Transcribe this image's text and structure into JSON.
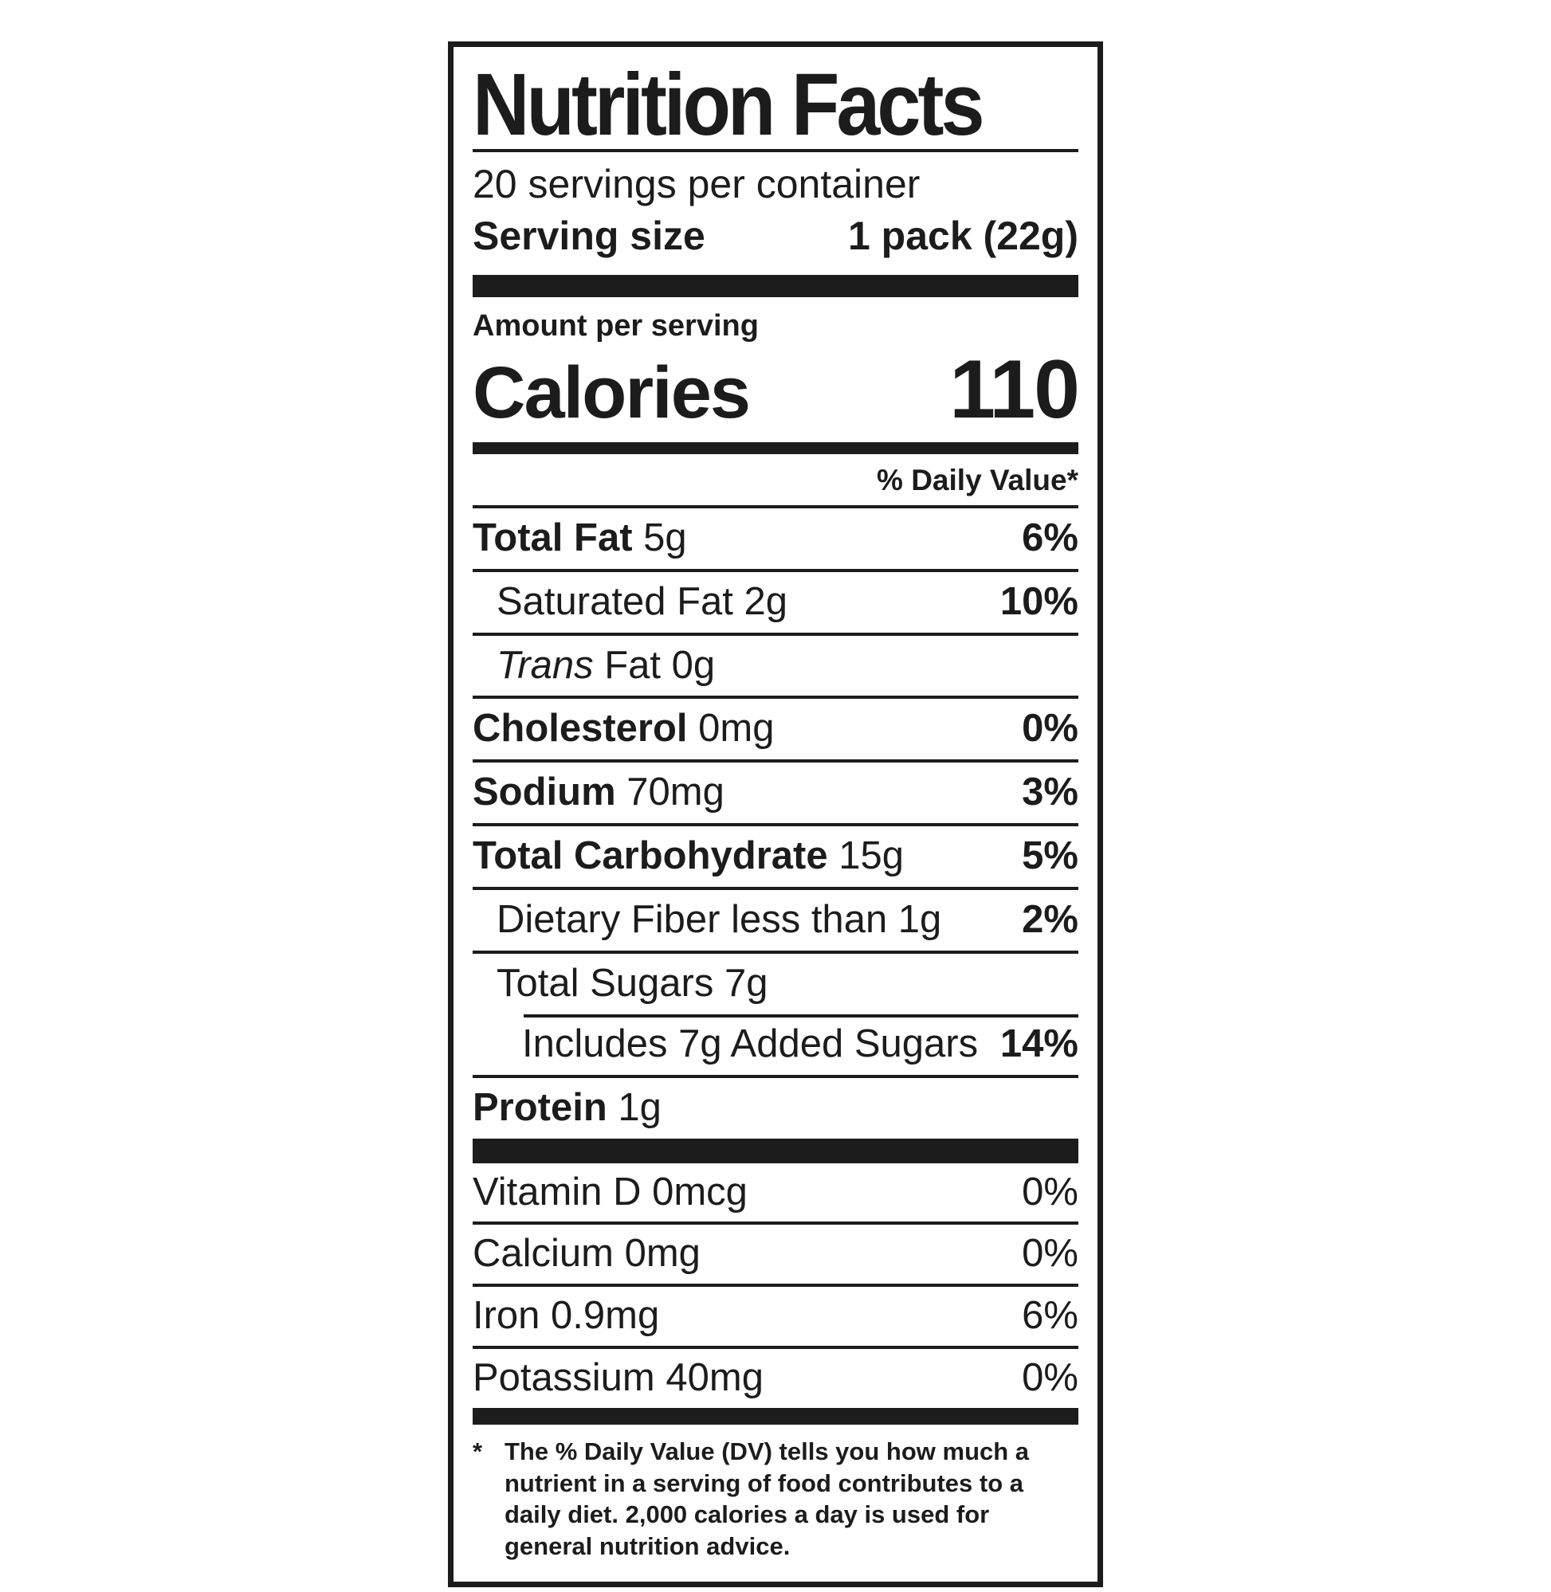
{
  "colors": {
    "ink": "#1c1c1c",
    "background": "#ffffff"
  },
  "label": {
    "title": "Nutrition Facts",
    "servings_per_container": "20 servings per container",
    "serving_size": {
      "label": "Serving size",
      "value": "1 pack (22g)"
    },
    "amount_per_serving": "Amount per serving",
    "calories": {
      "label": "Calories",
      "value": "110"
    },
    "dv_header": "% Daily Value*"
  },
  "nutrients": [
    {
      "b": "Total Fat",
      "t": " 5g",
      "dv": "6%"
    },
    {
      "t": "Saturated Fat 2g",
      "dv": "10%"
    },
    {
      "i": "Trans",
      "t": " Fat 0g"
    },
    {
      "b": "Cholesterol",
      "t": " 0mg",
      "dv": "0%"
    },
    {
      "b": "Sodium",
      "t": " 70mg",
      "dv": "3%"
    },
    {
      "b": "Total Carbohydrate",
      "t": " 15g",
      "dv": "5%"
    },
    {
      "t": "Dietary Fiber less than 1g",
      "dv": "2%"
    },
    {
      "t": "Total Sugars 7g"
    },
    {
      "t": "Includes 7g Added Sugars",
      "dv": "14%"
    },
    {
      "b": "Protein",
      "t": " 1g"
    }
  ],
  "minerals": [
    {
      "t": "Vitamin D 0mcg",
      "dv": "0%"
    },
    {
      "t": "Calcium 0mg",
      "dv": "0%"
    },
    {
      "t": "Iron 0.9mg",
      "dv": "6%"
    },
    {
      "t": "Potassium 40mg",
      "dv": "0%"
    }
  ],
  "footnote": {
    "marker": "*",
    "text": "The % Daily Value (DV) tells you how much a nutrient in a serving of food contributes to a daily diet. 2,000 calories a day is used for general nutrition advice."
  }
}
